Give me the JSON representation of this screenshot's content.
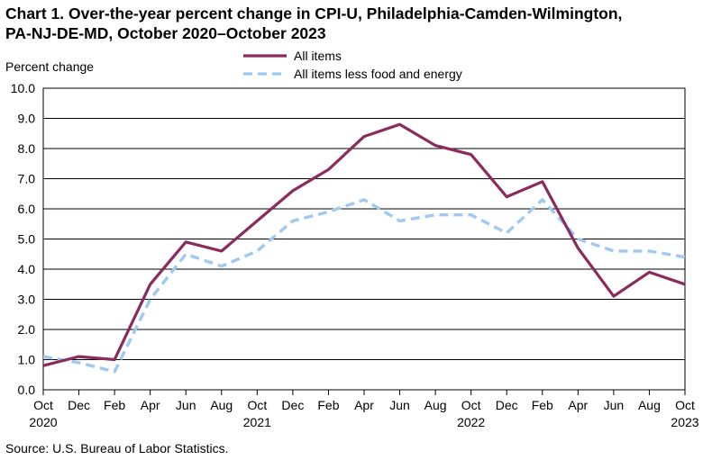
{
  "chart_data": {
    "type": "line",
    "title_line1": "Chart 1. Over-the-year percent change in CPI-U, Philadelphia-Camden-Wilmington,",
    "title_line2": "PA-NJ-DE-MD, October 2020–October 2023",
    "ylabel": "Percent change",
    "ylim": [
      0,
      10
    ],
    "yticks": [
      "0.0",
      "1.0",
      "2.0",
      "3.0",
      "4.0",
      "5.0",
      "6.0",
      "7.0",
      "8.0",
      "9.0",
      "10.0"
    ],
    "x": [
      "Oct 2020",
      "Dec 2020",
      "Feb 2021",
      "Apr 2021",
      "Jun 2021",
      "Aug 2021",
      "Oct 2021",
      "Dec 2021",
      "Feb 2022",
      "Apr 2022",
      "Jun 2022",
      "Aug 2022",
      "Oct 2022",
      "Dec 2022",
      "Feb 2023",
      "Apr 2023",
      "Jun 2023",
      "Aug 2023",
      "Oct 2023"
    ],
    "xtick_months": [
      "Oct",
      "Dec",
      "Feb",
      "Apr",
      "Jun",
      "Aug",
      "Oct",
      "Dec",
      "Feb",
      "Apr",
      "Jun",
      "Aug",
      "Oct",
      "Dec",
      "Feb",
      "Apr",
      "Jun",
      "Aug",
      "Oct"
    ],
    "xtick_years": [
      {
        "label": "2020",
        "index": 0
      },
      {
        "label": "2021",
        "index": 6
      },
      {
        "label": "2022",
        "index": 12
      },
      {
        "label": "2023",
        "index": 18
      }
    ],
    "series": [
      {
        "name": "All items",
        "color": "#8b2a5c",
        "dashed": false,
        "values": [
          0.8,
          1.1,
          1.0,
          3.5,
          4.9,
          4.6,
          5.6,
          6.6,
          7.3,
          8.4,
          8.8,
          8.1,
          7.8,
          6.4,
          6.9,
          4.7,
          3.1,
          3.9,
          3.5
        ]
      },
      {
        "name": "All items less food and energy",
        "color": "#9fc9f2",
        "dashed": true,
        "values": [
          1.1,
          0.9,
          0.6,
          3.0,
          4.5,
          4.1,
          4.6,
          5.6,
          5.9,
          6.3,
          5.6,
          5.8,
          5.8,
          5.2,
          6.3,
          5.0,
          4.6,
          4.6,
          4.4
        ]
      }
    ],
    "grid": true,
    "legend": "top-center",
    "source": "Source: U.S. Bureau of Labor Statistics."
  }
}
